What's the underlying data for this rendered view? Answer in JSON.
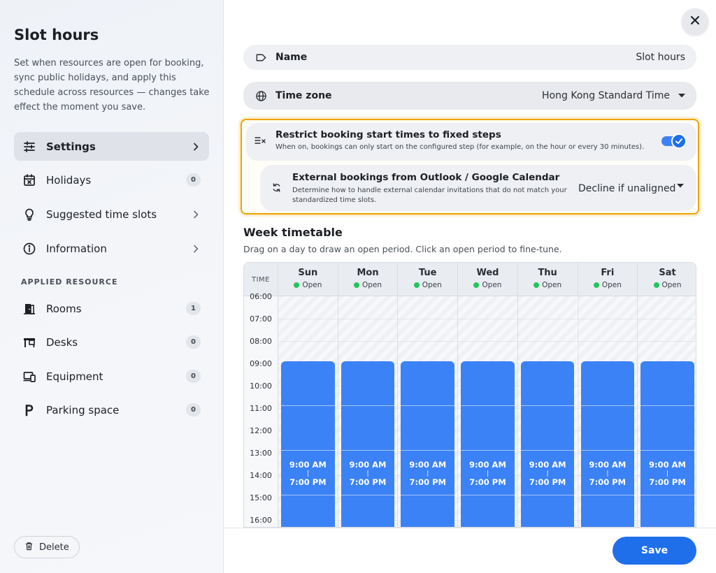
{
  "sidebar": {
    "title": "Slot hours",
    "description": "Set when resources are open for booking, sync public holidays, and apply this schedule across resources — changes take effect the moment you save.",
    "items": [
      {
        "label": "Settings",
        "icon": "sliders-icon",
        "trailing": "chevron"
      },
      {
        "label": "Holidays",
        "icon": "calendar-x-icon",
        "badge": "0"
      },
      {
        "label": "Suggested time slots",
        "icon": "lightbulb-icon",
        "trailing": "chevron"
      },
      {
        "label": "Information",
        "icon": "info-icon",
        "trailing": "chevron"
      }
    ],
    "section_label": "APPLIED RESOURCE",
    "resources": [
      {
        "label": "Rooms",
        "icon": "door-icon",
        "badge": "1"
      },
      {
        "label": "Desks",
        "icon": "desk-icon",
        "badge": "0"
      },
      {
        "label": "Equipment",
        "icon": "devices-icon",
        "badge": "0"
      },
      {
        "label": "Parking space",
        "icon": "parking-icon",
        "badge": "0"
      }
    ],
    "delete_label": "Delete"
  },
  "form": {
    "name_label": "Name",
    "name_value": "Slot hours",
    "timezone_label": "Time zone",
    "timezone_value": "Hong Kong Standard Time",
    "restrict_title": "Restrict booking start times to fixed steps",
    "restrict_desc": "When on, bookings can only start on the configured step (for example, on the hour or every 30 minutes).",
    "restrict_on": true,
    "external_title": "External bookings from Outlook / Google Calendar",
    "external_desc": "Determine how to handle external calendar invitations that do not match your standardized time slots.",
    "external_value": "Decline if unaligned"
  },
  "timetable": {
    "title": "Week timetable",
    "hint": "Drag on a day to draw an open period. Click an open period to fine-tune.",
    "time_label": "TIME",
    "hours": [
      "06:00",
      "07:00",
      "08:00",
      "09:00",
      "10:00",
      "11:00",
      "12:00",
      "13:00",
      "14:00",
      "15:00",
      "16:00"
    ],
    "days": [
      {
        "name": "Sun",
        "status": "Open",
        "start": "9:00 AM",
        "sep": "|",
        "end": "7:00 PM"
      },
      {
        "name": "Mon",
        "status": "Open",
        "start": "9:00 AM",
        "sep": "|",
        "end": "7:00 PM"
      },
      {
        "name": "Tue",
        "status": "Open",
        "start": "9:00 AM",
        "sep": "|",
        "end": "7:00 PM"
      },
      {
        "name": "Wed",
        "status": "Open",
        "start": "9:00 AM",
        "sep": "|",
        "end": "7:00 PM"
      },
      {
        "name": "Thu",
        "status": "Open",
        "start": "9:00 AM",
        "sep": "|",
        "end": "7:00 PM"
      },
      {
        "name": "Fri",
        "status": "Open",
        "start": "9:00 AM",
        "sep": "|",
        "end": "7:00 PM"
      },
      {
        "name": "Sat",
        "status": "Open",
        "start": "9:00 AM",
        "sep": "|",
        "end": "7:00 PM"
      }
    ],
    "open_color": "#3b82f6",
    "status_color": "#22c55e"
  },
  "footer": {
    "save_label": "Save"
  },
  "colors": {
    "accent": "#1f6feb",
    "highlight_border": "#f0a500"
  }
}
